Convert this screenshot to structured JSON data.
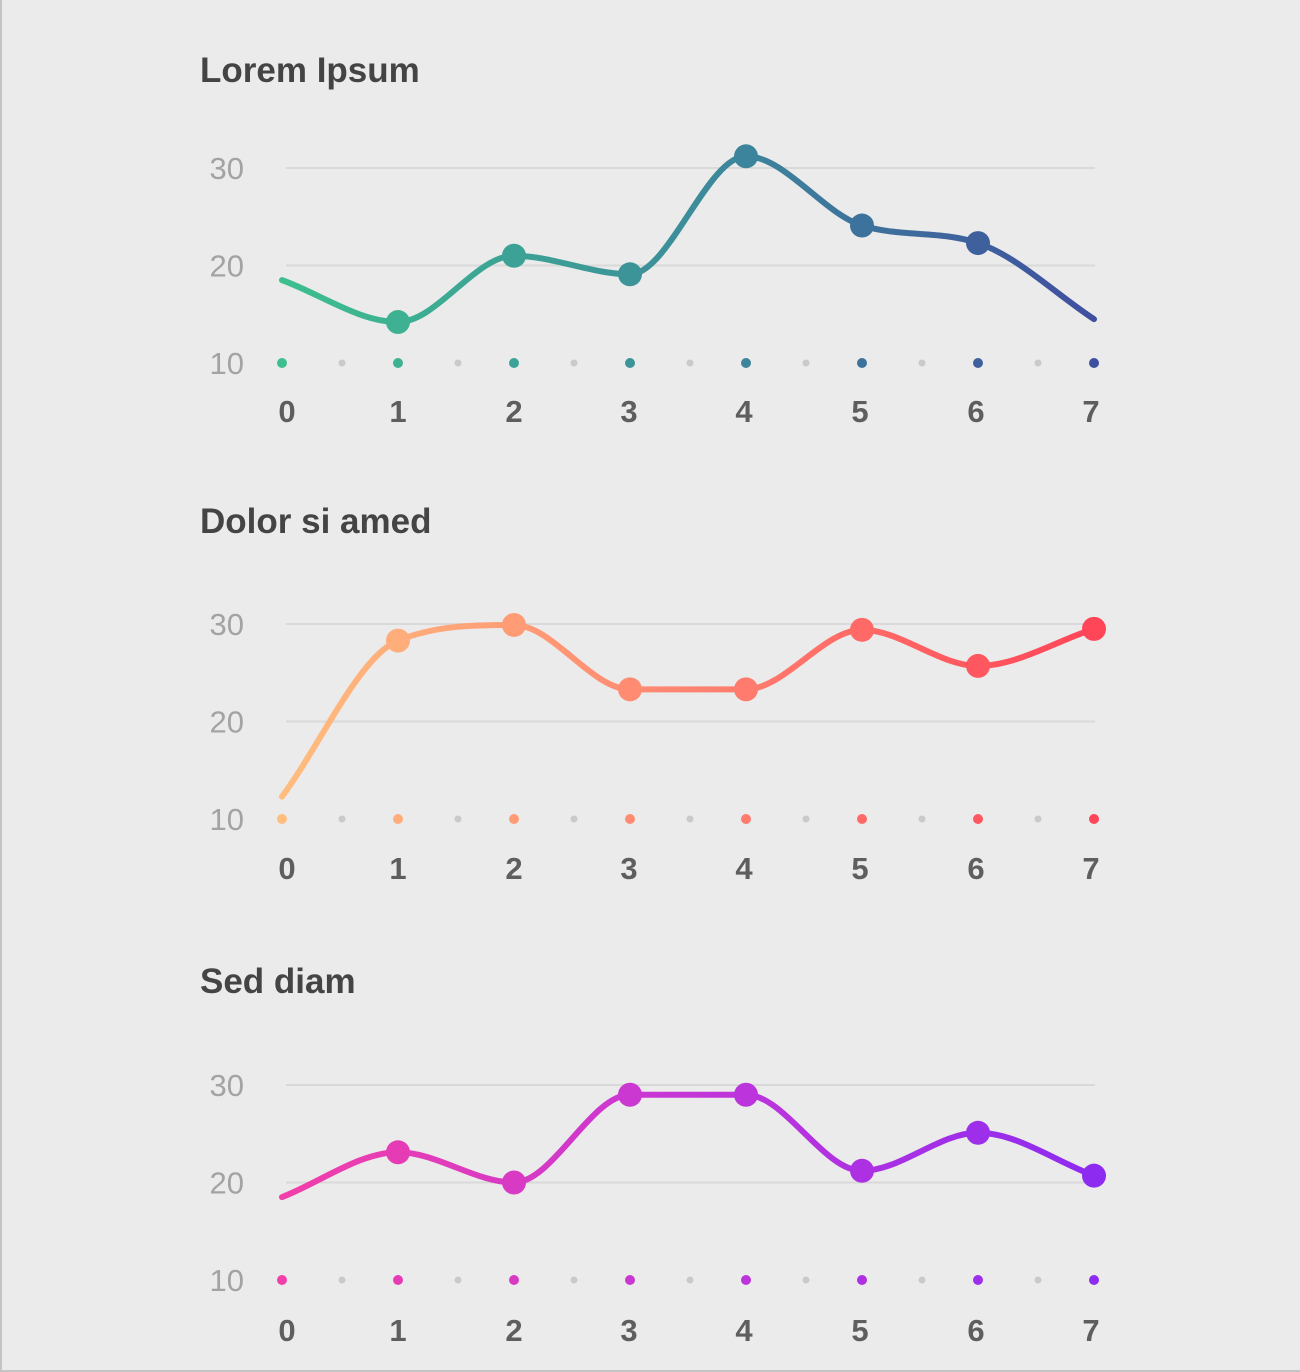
{
  "chart_data": [
    {
      "type": "line",
      "title": "Lorem Ipsum",
      "x": [
        0,
        1,
        2,
        3,
        4,
        5,
        6,
        7
      ],
      "y_ticks": [
        10,
        20,
        30
      ],
      "ylim": [
        10,
        30
      ],
      "series_values": [
        18.5,
        14.2,
        21.0,
        19.1,
        31.2,
        24.1,
        22.3,
        14.5
      ],
      "start_value": 18.5,
      "marker_points": [
        1,
        2,
        3,
        4,
        5,
        6
      ],
      "grid": true,
      "gradient": [
        "#3dbf8e",
        "#3c8d9a",
        "#3f4f9f"
      ]
    },
    {
      "type": "line",
      "title": "Dolor si amed",
      "x": [
        0,
        1,
        2,
        3,
        4,
        5,
        6,
        7
      ],
      "y_ticks": [
        10,
        20,
        30
      ],
      "ylim": [
        10,
        30
      ],
      "series_values": [
        12.3,
        28.3,
        29.9,
        23.3,
        23.3,
        29.4,
        25.7,
        29.5
      ],
      "start_value": 12.3,
      "marker_points": [
        1,
        2,
        3,
        4,
        5,
        6,
        7
      ],
      "grid": true,
      "gradient": [
        "#ffbd7e",
        "#ff8470",
        "#ff4558"
      ]
    },
    {
      "type": "line",
      "title": "Sed diam",
      "x": [
        0,
        1,
        2,
        3,
        4,
        5,
        6,
        7
      ],
      "y_ticks": [
        10,
        20,
        30
      ],
      "ylim": [
        10,
        30
      ],
      "series_values": [
        18.5,
        23.1,
        20.0,
        29.0,
        29.0,
        21.2,
        25.1,
        20.7
      ],
      "start_value": 18.5,
      "marker_points": [
        1,
        2,
        3,
        4,
        5,
        6,
        7
      ],
      "grid": true,
      "gradient": [
        "#f23fa9",
        "#c436d8",
        "#8e2bf0"
      ]
    }
  ]
}
